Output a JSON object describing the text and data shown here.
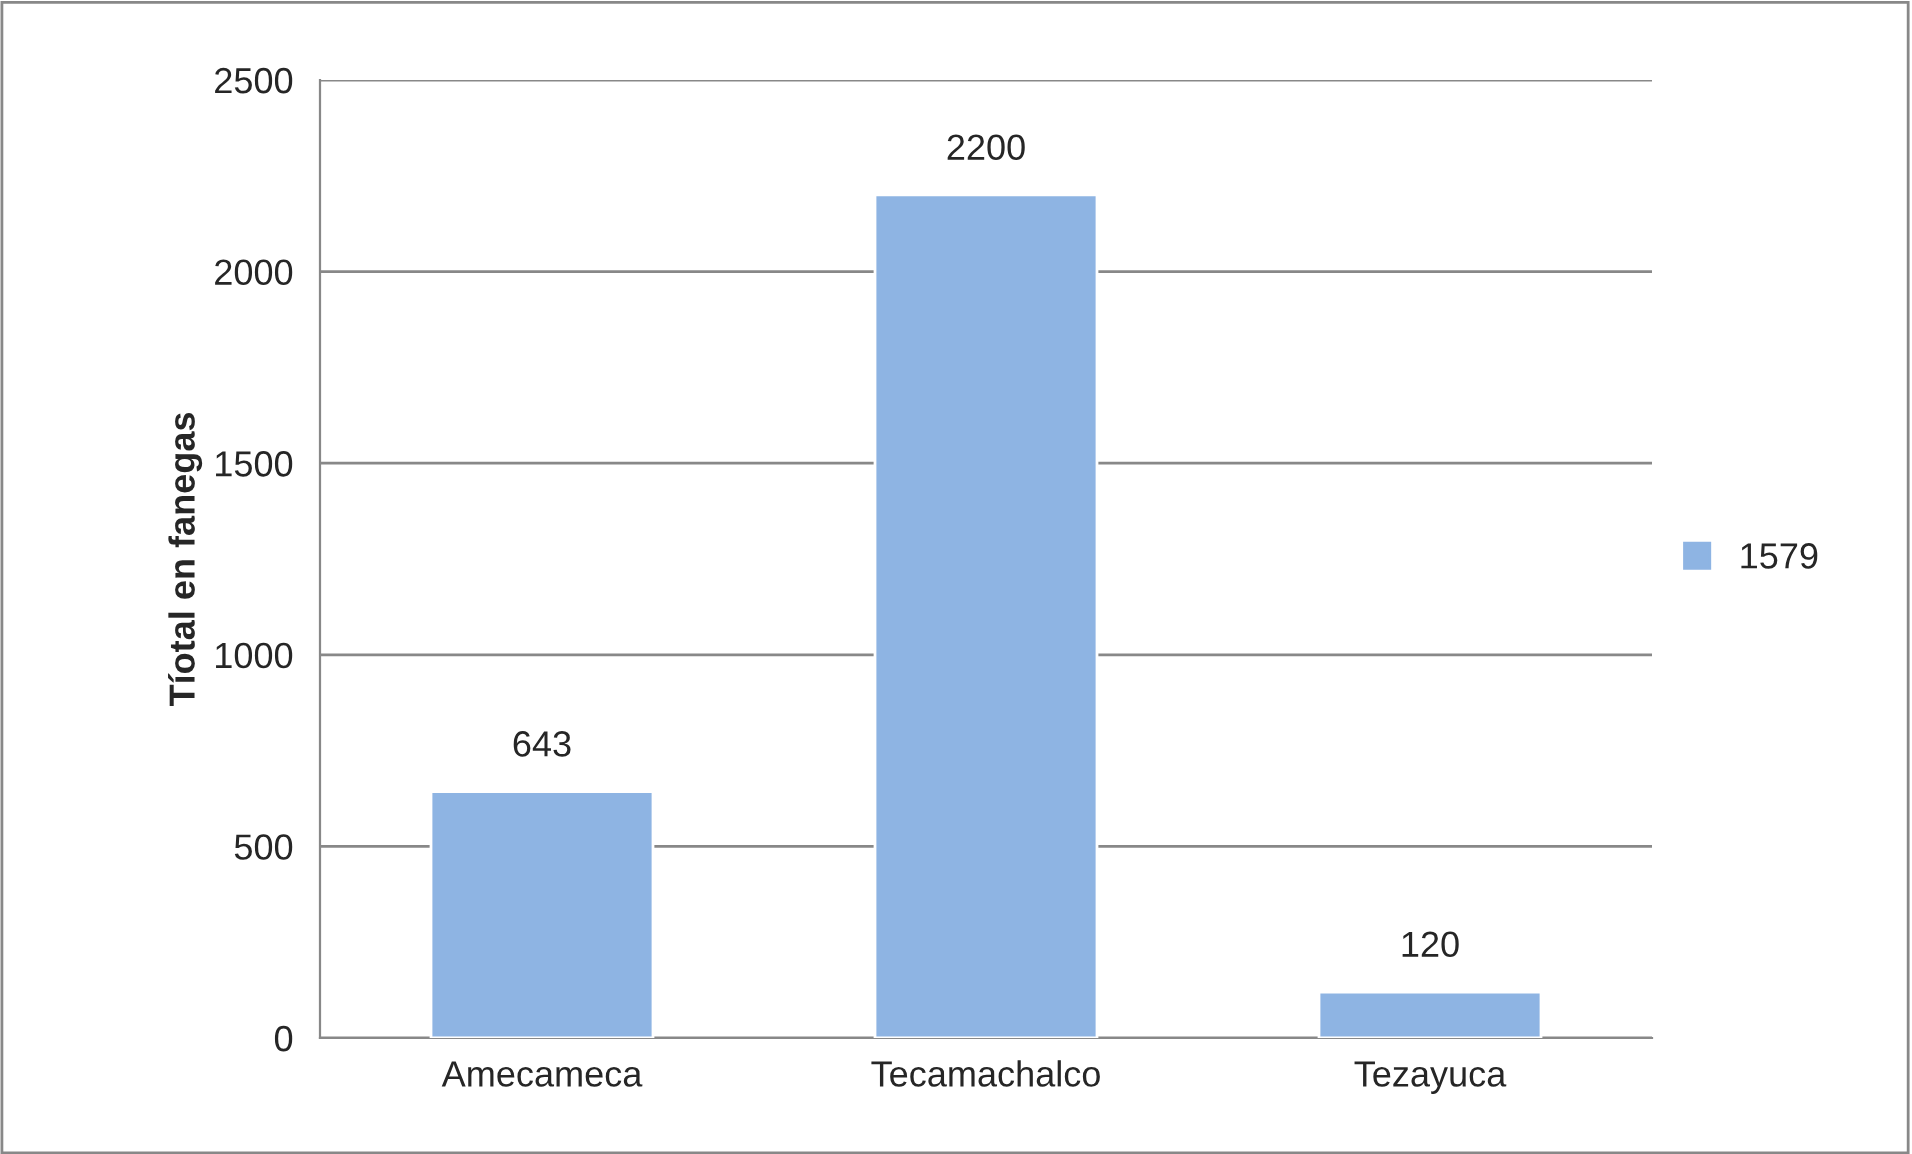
{
  "chart_data": {
    "type": "bar",
    "ylabel": "Tíotal en fanegas",
    "categories": [
      "Amecameca",
      "Tecamachalco",
      "Tezayuca"
    ],
    "series": [
      {
        "name": "1579",
        "color": "#8eb4e3",
        "values": [
          643,
          2200,
          120
        ]
      }
    ],
    "ylim": [
      0,
      2500
    ],
    "yticks": [
      0,
      500,
      1000,
      1500,
      2000,
      2500
    ],
    "grid": "y",
    "legend": "right",
    "data_labels": true
  }
}
